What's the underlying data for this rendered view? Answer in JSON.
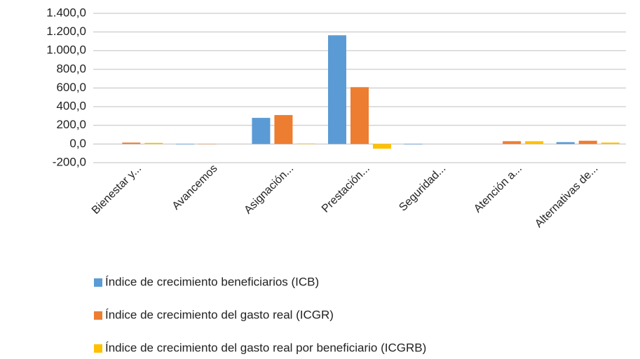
{
  "chart_data": {
    "type": "bar",
    "categories": [
      "Bienestar y...",
      "Avancemos",
      "Asignación...",
      "Prestación...",
      "Seguridad...",
      "Atención a...",
      "Alternativas de..."
    ],
    "series": [
      {
        "name": "Índice de crecimiento beneficiarios (ICB)",
        "color": "#5b9bd5",
        "values": [
          0,
          -5,
          280,
          1165,
          -5,
          0,
          20
        ]
      },
      {
        "name": "Índice de crecimiento del gasto real (ICGR)",
        "color": "#ed7d31",
        "values": [
          15,
          -3,
          310,
          609,
          0,
          30,
          35
        ]
      },
      {
        "name": "Índice de crecimiento del gasto real por beneficiario (ICGRB)",
        "color": "#ffc000",
        "values": [
          12,
          0,
          5,
          -50,
          0,
          30,
          15
        ]
      }
    ],
    "ylim": [
      -200,
      1400
    ],
    "yticks": [
      {
        "value": -200,
        "label": "-200,0"
      },
      {
        "value": 0,
        "label": "0,0"
      },
      {
        "value": 200,
        "label": "200,0"
      },
      {
        "value": 400,
        "label": "400,0"
      },
      {
        "value": 600,
        "label": "600,0"
      },
      {
        "value": 800,
        "label": "800,0"
      },
      {
        "value": 1000,
        "label": "1.000,0"
      },
      {
        "value": 1200,
        "label": "1.200,0"
      },
      {
        "value": 1400,
        "label": "1.400,0"
      }
    ],
    "grid": true,
    "legend": "bottom"
  }
}
